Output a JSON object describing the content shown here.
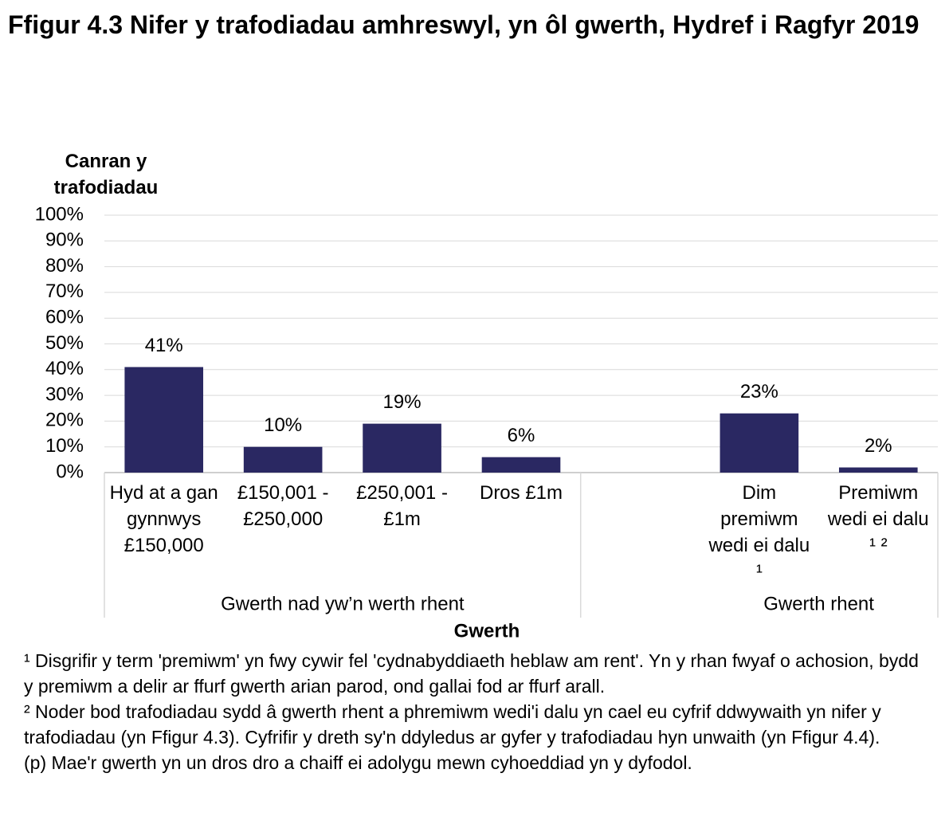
{
  "chart_data": {
    "type": "bar",
    "title": "Ffigur 4.3  Nifer y trafodiadau amhreswyl, yn ôl gwerth, Hydref i Ragfyr 2019",
    "y_label": "Canran y trafodiadau",
    "x_label": "Gwerth",
    "categories": [
      "Hyd at a gan gynnwys £150,000",
      "£150,001 - £250,000",
      "£250,001 - £1m",
      "Dros £1m",
      null,
      "Dim premiwm wedi ei dalu ¹",
      "Premiwm wedi ei dalu ¹ ²"
    ],
    "values": [
      41,
      10,
      19,
      6,
      null,
      23,
      2
    ],
    "value_labels": [
      "41%",
      "10%",
      "19%",
      "6%",
      null,
      "23%",
      "2%"
    ],
    "groups": [
      "Gwerth nad yw’n werth rhent",
      "Gwerth rhent"
    ],
    "color": "#2a2862",
    "ylim": [
      0,
      100
    ],
    "yticks": [
      {
        "value": 0,
        "label": "0%"
      },
      {
        "value": 10,
        "label": "10%"
      },
      {
        "value": 20,
        "label": "20%"
      },
      {
        "value": 30,
        "label": "30%"
      },
      {
        "value": 40,
        "label": "40%"
      },
      {
        "value": 50,
        "label": "50%"
      },
      {
        "value": 60,
        "label": "60%"
      },
      {
        "value": 70,
        "label": "70%"
      },
      {
        "value": 80,
        "label": "80%"
      },
      {
        "value": 90,
        "label": "90%"
      },
      {
        "value": 100,
        "label": "100%"
      }
    ],
    "grid": true,
    "footnotes": [
      "¹ Disgrifir y term 'premiwm' yn fwy cywir fel 'cydnabyddiaeth heblaw am rent'. Yn y rhan fwyaf o achosion, bydd y premiwm a delir ar ffurf gwerth arian parod, ond gallai fod ar ffurf arall.",
      "² Noder bod trafodiadau sydd â gwerth rhent a phremiwm wedi'i dalu yn cael eu cyfrif ddwywaith yn nifer y trafodiadau (yn Ffigur 4.3). Cyfrifir y dreth sy'n ddyledus ar gyfer y trafodiadau hyn unwaith (yn Ffigur 4.4).",
      "(p) Mae'r gwerth yn un dros dro a chaiff ei adolygu mewn cyhoeddiad yn y dyfodol."
    ]
  }
}
